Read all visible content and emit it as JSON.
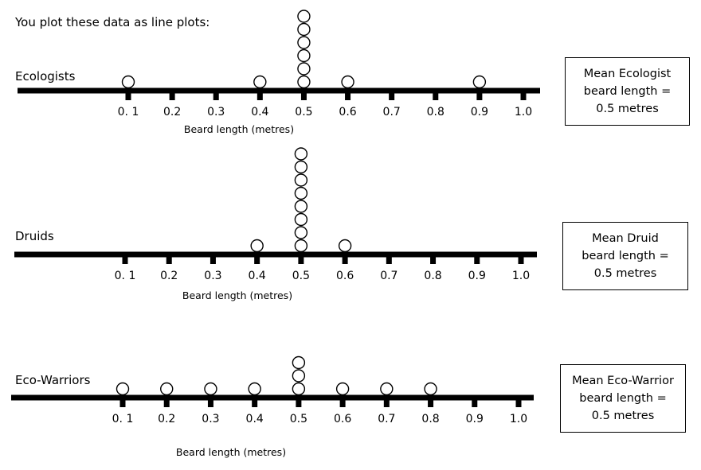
{
  "intro_text": "You plot these data as line plots:",
  "chart_data": [
    {
      "type": "scatter",
      "title": "Ecologists",
      "xlabel": "Beard length (metres)",
      "ylabel": "",
      "x_ticks": [
        "0. 1",
        "0.2",
        "0.3",
        "0.4",
        "0.5",
        "0.6",
        "0.7",
        "0.8",
        "0.9",
        "1.0"
      ],
      "xlim": [
        0.1,
        1.0
      ],
      "points": [
        {
          "x": 0.1,
          "count": 1
        },
        {
          "x": 0.4,
          "count": 1
        },
        {
          "x": 0.5,
          "count": 6
        },
        {
          "x": 0.6,
          "count": 1
        },
        {
          "x": 0.9,
          "count": 1
        }
      ],
      "mean_box": [
        "Mean Ecologist",
        "beard length =",
        "0.5 metres"
      ]
    },
    {
      "type": "scatter",
      "title": "Druids",
      "xlabel": "Beard length (metres)",
      "ylabel": "",
      "x_ticks": [
        "0. 1",
        "0.2",
        "0.3",
        "0.4",
        "0.5",
        "0.6",
        "0.7",
        "0.8",
        "0.9",
        "1.0"
      ],
      "xlim": [
        0.1,
        1.0
      ],
      "points": [
        {
          "x": 0.4,
          "count": 1
        },
        {
          "x": 0.5,
          "count": 8
        },
        {
          "x": 0.6,
          "count": 1
        }
      ],
      "mean_box": [
        "Mean Druid",
        "beard length =",
        "0.5 metres"
      ]
    },
    {
      "type": "scatter",
      "title": "Eco-Warriors",
      "xlabel": "Beard length (metres)",
      "ylabel": "",
      "x_ticks": [
        "0. 1",
        "0.2",
        "0.3",
        "0.4",
        "0.5",
        "0.6",
        "0.7",
        "0.8",
        "0.9",
        "1.0"
      ],
      "xlim": [
        0.1,
        1.0
      ],
      "points": [
        {
          "x": 0.1,
          "count": 1
        },
        {
          "x": 0.2,
          "count": 1
        },
        {
          "x": 0.3,
          "count": 1
        },
        {
          "x": 0.4,
          "count": 1
        },
        {
          "x": 0.5,
          "count": 3
        },
        {
          "x": 0.6,
          "count": 1
        },
        {
          "x": 0.7,
          "count": 1
        },
        {
          "x": 0.8,
          "count": 1
        }
      ],
      "mean_box": [
        "Mean Eco-Warrior",
        "beard length =",
        "0.5 metres"
      ]
    }
  ]
}
